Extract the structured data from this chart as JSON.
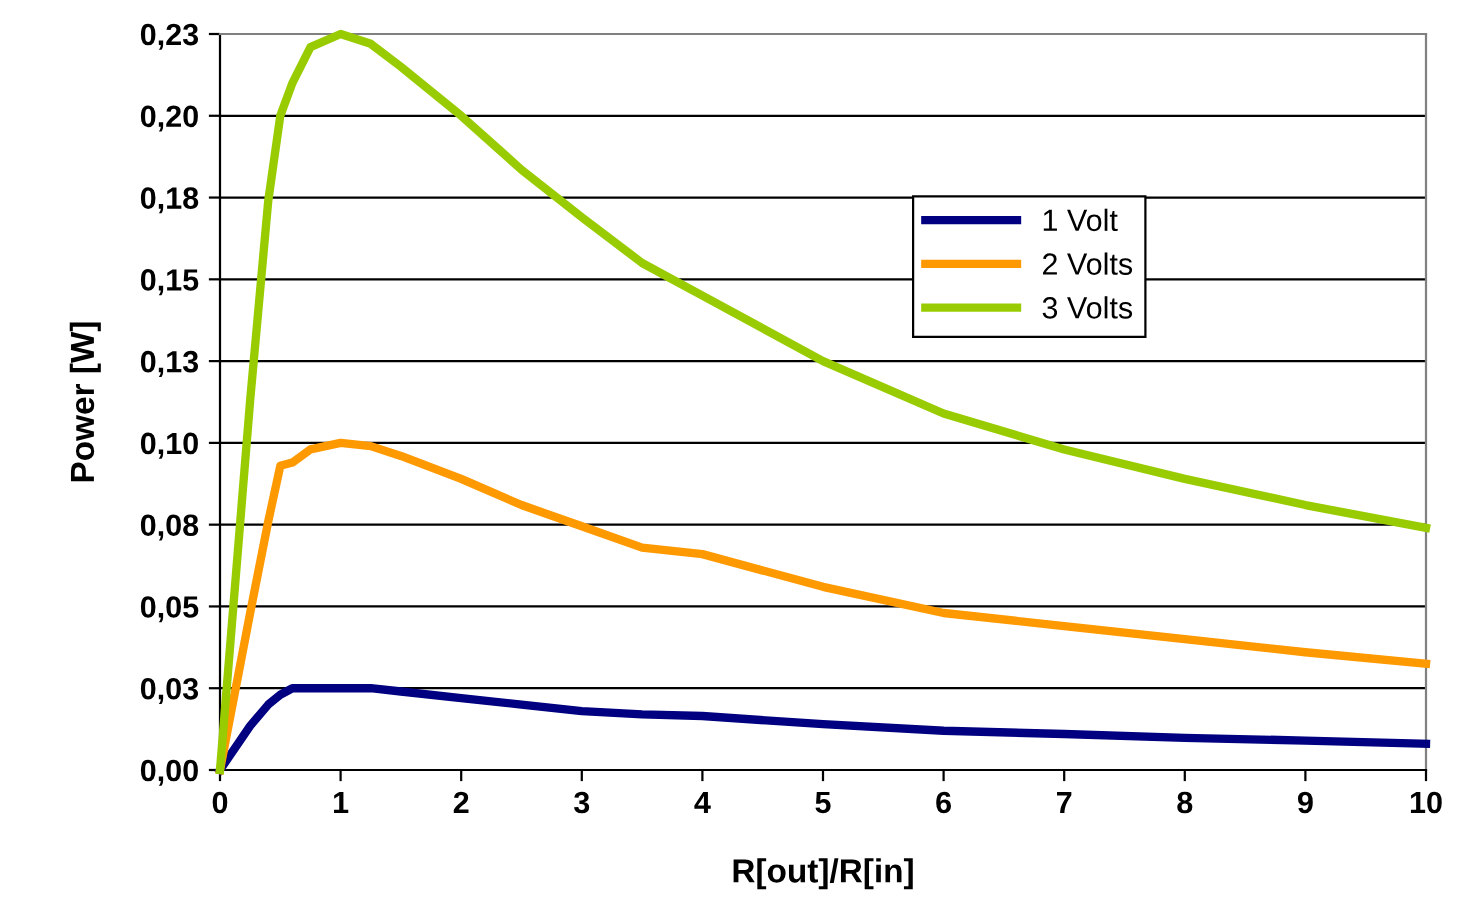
{
  "chart_data": {
    "type": "line",
    "xlabel": "R[out]/R[in]",
    "ylabel": "Power [W]",
    "xlim": [
      0,
      10
    ],
    "xticks": [
      0,
      1,
      2,
      3,
      4,
      5,
      6,
      7,
      8,
      9,
      10
    ],
    "ylim": [
      0,
      0.225
    ],
    "yticks": [
      {
        "value": 0,
        "label": "0,00"
      },
      {
        "value": 0.025,
        "label": "0,03"
      },
      {
        "value": 0.05,
        "label": "0,05"
      },
      {
        "value": 0.075,
        "label": "0,08"
      },
      {
        "value": 0.1,
        "label": "0,10"
      },
      {
        "value": 0.125,
        "label": "0,13"
      },
      {
        "value": 0.15,
        "label": "0,15"
      },
      {
        "value": 0.175,
        "label": "0,18"
      },
      {
        "value": 0.2,
        "label": "0,20"
      },
      {
        "value": 0.225,
        "label": "0,23"
      }
    ],
    "grid": "y",
    "legend": "top right",
    "marker": "none",
    "line_style": "solid",
    "x": [
      0,
      0.25,
      0.4,
      0.5,
      0.6,
      0.75,
      1,
      1.25,
      1.5,
      2,
      2.5,
      3,
      3.5,
      4,
      5,
      6,
      7,
      8,
      9,
      10
    ],
    "series": [
      {
        "name": "1 Volt",
        "color": "#000080",
        "values": [
          0,
          0.0135,
          0.02,
          0.023,
          0.025,
          0.025,
          0.025,
          0.025,
          0.024,
          0.022,
          0.02,
          0.018,
          0.017,
          0.0165,
          0.014,
          0.012,
          0.011,
          0.0098,
          0.009,
          0.008
        ]
      },
      {
        "name": "2 Volts",
        "color": "#ff9900",
        "values": [
          0,
          0.048,
          0.076,
          0.093,
          0.094,
          0.098,
          0.1,
          0.099,
          0.096,
          0.089,
          0.081,
          0.0745,
          0.068,
          0.066,
          0.056,
          0.048,
          0.044,
          0.04,
          0.036,
          0.0325
        ]
      },
      {
        "name": "3 Volts",
        "color": "#99cc00",
        "values": [
          0,
          0.113,
          0.174,
          0.2,
          0.21,
          0.221,
          0.225,
          0.222,
          0.215,
          0.2,
          0.1835,
          0.169,
          0.155,
          0.145,
          0.125,
          0.109,
          0.098,
          0.089,
          0.081,
          0.074
        ]
      }
    ]
  }
}
